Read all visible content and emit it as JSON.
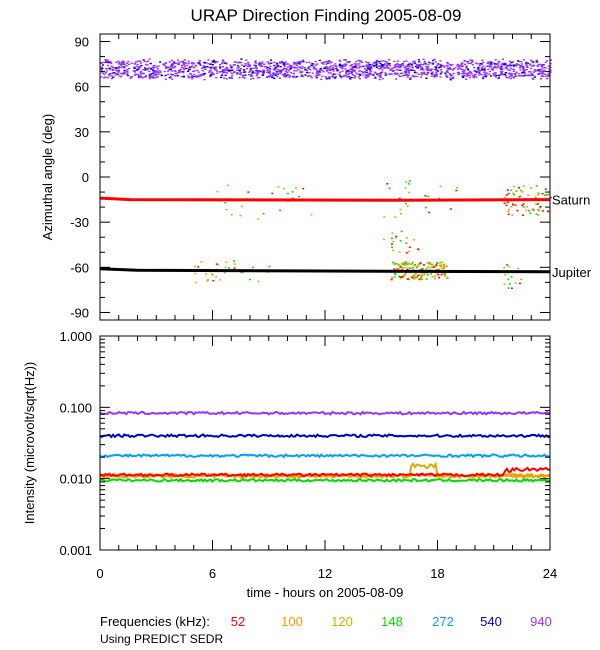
{
  "chart_data": [
    {
      "type": "scatter",
      "title": "URAP Direction Finding  2005-08-09",
      "xlabel": "",
      "ylabel": "Azimuthal angle (deg)",
      "xlim": [
        0,
        24
      ],
      "ylim": [
        -95,
        95
      ],
      "xticks": [
        0,
        6,
        12,
        18,
        24
      ],
      "yticks": [
        90,
        60,
        30,
        0,
        -30,
        -60,
        -90
      ],
      "ytick_labels": [
        "90",
        "60",
        "30",
        "0",
        "-30",
        "-60",
        "-90"
      ],
      "reference_lines": [
        {
          "name": "Saturn",
          "color": "#ff0000",
          "x": [
            0,
            1.6,
            16.3,
            24
          ],
          "y": [
            -14,
            -15,
            -15.5,
            -15
          ]
        },
        {
          "name": "Jupiter",
          "color": "#000000",
          "x": [
            0,
            2,
            13.5,
            24
          ],
          "y": [
            -61,
            -62,
            -62.5,
            -63
          ]
        }
      ],
      "series": [
        {
          "name": "940",
          "color": "#9933ff",
          "band_center": 72,
          "band_spread": 7,
          "x_range": [
            0,
            24
          ]
        },
        {
          "name": "540",
          "color": "#0000cc",
          "band_center": 72,
          "band_spread": 7,
          "x_range": [
            0,
            24
          ]
        }
      ]
    },
    {
      "type": "line",
      "title": "",
      "xlabel": "time - hours on 2005-08-09",
      "ylabel": "Intensity (microvolt/sqrt(Hz))",
      "yscale": "log",
      "xlim": [
        0,
        24
      ],
      "ylim": [
        0.001,
        1.0
      ],
      "xticks": [
        0,
        6,
        12,
        18,
        24
      ],
      "yticks": [
        1.0,
        0.1,
        0.01,
        0.001
      ],
      "ytick_labels": [
        "1.000",
        "0.100",
        "0.010",
        "0.001"
      ],
      "series": [
        {
          "name": "940",
          "color": "#9933ff",
          "level": 0.083
        },
        {
          "name": "540",
          "color": "#0000cc",
          "level": 0.04
        },
        {
          "name": "272",
          "color": "#00a0ff",
          "level": 0.021
        },
        {
          "name": "148",
          "color": "#00dd00",
          "level": 0.0095
        },
        {
          "name": "120",
          "color": "#ddaa00",
          "level": 0.0108
        },
        {
          "name": "100",
          "color": "#ff9900",
          "level": 0.0112
        },
        {
          "name": "52",
          "color": "#ff0000",
          "level": 0.0113
        }
      ]
    }
  ],
  "legend": {
    "label": "Frequencies (kHz):",
    "items": [
      {
        "text": "52",
        "color": "#ff0000"
      },
      {
        "text": "100",
        "color": "#ff9900"
      },
      {
        "text": "120",
        "color": "#ddaa00"
      },
      {
        "text": "148",
        "color": "#00dd00"
      },
      {
        "text": "272",
        "color": "#00a0ff"
      },
      {
        "text": "540",
        "color": "#0000cc"
      },
      {
        "text": "940",
        "color": "#9933ff"
      }
    ]
  },
  "note": "Using PREDICT SEDR"
}
